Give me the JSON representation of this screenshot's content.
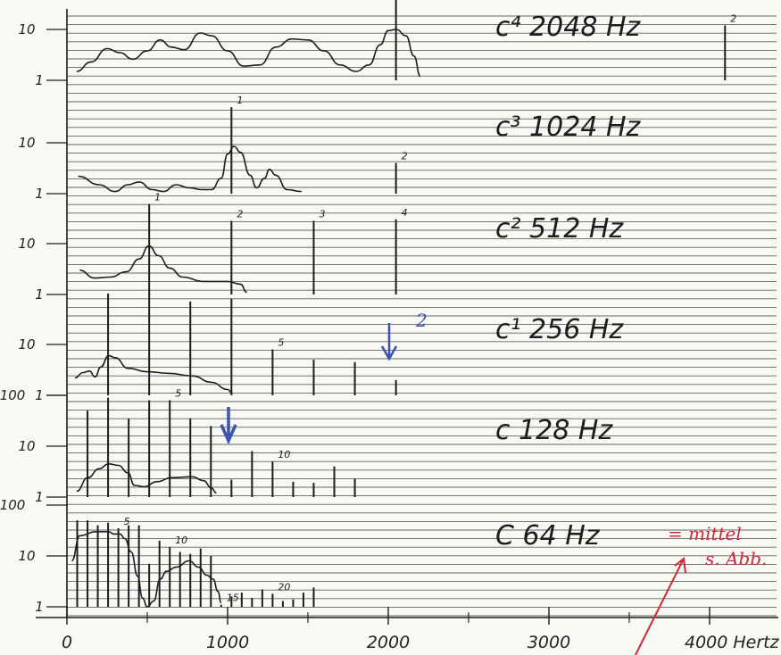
{
  "chart_data": {
    "type": "line",
    "xlabel": "Hertz",
    "x_ticks": [
      {
        "value": 0,
        "label": "0"
      },
      {
        "value": 1000,
        "label": "1000"
      },
      {
        "value": 2000,
        "label": "2000"
      },
      {
        "value": 3000,
        "label": "3000"
      },
      {
        "value": 4000,
        "label": "4000 Hertz"
      }
    ],
    "xlim": [
      0,
      4500
    ],
    "y_scale": "log",
    "panels": [
      {
        "title": "c⁴ 2048 Hz",
        "ylim": [
          1,
          100
        ],
        "y_ticks": [
          {
            "value": 1,
            "label": "1"
          },
          {
            "value": 10,
            "label": "10"
          }
        ],
        "curve": [
          [
            60,
            1.5
          ],
          [
            150,
            2.3
          ],
          [
            250,
            4.2
          ],
          [
            330,
            3.5
          ],
          [
            410,
            2.6
          ],
          [
            500,
            3.8
          ],
          [
            580,
            6.2
          ],
          [
            650,
            4.5
          ],
          [
            730,
            4.0
          ],
          [
            830,
            8.5
          ],
          [
            900,
            7.5
          ],
          [
            1000,
            3.8
          ],
          [
            1100,
            1.9
          ],
          [
            1200,
            2.0
          ],
          [
            1300,
            4.5
          ],
          [
            1400,
            6.5
          ],
          [
            1500,
            6.2
          ],
          [
            1600,
            3.8
          ],
          [
            1700,
            2.0
          ],
          [
            1800,
            1.5
          ],
          [
            1880,
            2.0
          ],
          [
            1950,
            5.0
          ],
          [
            2000,
            9.5
          ],
          [
            2050,
            10.0
          ],
          [
            2110,
            7.5
          ],
          [
            2160,
            3.0
          ],
          [
            2200,
            1.2
          ]
        ],
        "partials": [
          {
            "freq": 2048,
            "peak": 50,
            "label": "1"
          },
          {
            "freq": 4096,
            "peak": 12,
            "label": "2"
          }
        ]
      },
      {
        "title": "c³ 1024 Hz",
        "ylim": [
          1,
          100
        ],
        "y_ticks": [
          {
            "value": 1,
            "label": "1"
          },
          {
            "value": 10,
            "label": "10"
          }
        ],
        "curve": [
          [
            70,
            2.2
          ],
          [
            200,
            1.5
          ],
          [
            300,
            1.1
          ],
          [
            380,
            1.5
          ],
          [
            450,
            1.7
          ],
          [
            530,
            1.2
          ],
          [
            600,
            1.1
          ],
          [
            680,
            1.5
          ],
          [
            760,
            1.3
          ],
          [
            840,
            1.2
          ],
          [
            900,
            1.2
          ],
          [
            960,
            2.0
          ],
          [
            1000,
            6.0
          ],
          [
            1040,
            8.5
          ],
          [
            1080,
            6.5
          ],
          [
            1140,
            2.3
          ],
          [
            1180,
            1.3
          ],
          [
            1230,
            2.0
          ],
          [
            1260,
            3.0
          ],
          [
            1300,
            2.3
          ],
          [
            1370,
            1.2
          ],
          [
            1460,
            1.1
          ]
        ],
        "partials": [
          {
            "freq": 1024,
            "peak": 50,
            "label": "1"
          },
          {
            "freq": 2048,
            "peak": 4,
            "label": "2"
          }
        ]
      },
      {
        "title": "c² 512 Hz",
        "ylim": [
          1,
          100
        ],
        "y_ticks": [
          {
            "value": 1,
            "label": "1"
          },
          {
            "value": 10,
            "label": "10"
          }
        ],
        "curve": [
          [
            80,
            3.0
          ],
          [
            170,
            2.1
          ],
          [
            270,
            2.2
          ],
          [
            370,
            2.8
          ],
          [
            450,
            5.0
          ],
          [
            510,
            9.0
          ],
          [
            570,
            5.8
          ],
          [
            640,
            3.3
          ],
          [
            720,
            2.2
          ],
          [
            850,
            1.8
          ],
          [
            1000,
            1.8
          ],
          [
            1080,
            1.6
          ],
          [
            1120,
            1.1
          ]
        ],
        "partials": [
          {
            "freq": 512,
            "peak": 60,
            "label": "1"
          },
          {
            "freq": 1024,
            "peak": 28,
            "label": "2"
          },
          {
            "freq": 1536,
            "peak": 28,
            "label": "3"
          },
          {
            "freq": 2048,
            "peak": 30,
            "label": "4"
          }
        ]
      },
      {
        "title": "c¹ 256 Hz",
        "ylim": [
          1,
          100
        ],
        "y_ticks": [
          {
            "value": 1,
            "label": "1"
          },
          {
            "value": 10,
            "label": "10"
          }
        ],
        "curve": [
          [
            50,
            2.2
          ],
          [
            100,
            2.8
          ],
          [
            140,
            3.0
          ],
          [
            175,
            2.3
          ],
          [
            210,
            3.6
          ],
          [
            260,
            6.0
          ],
          [
            300,
            5.5
          ],
          [
            380,
            3.4
          ],
          [
            500,
            2.9
          ],
          [
            640,
            2.7
          ],
          [
            780,
            2.4
          ],
          [
            900,
            1.8
          ],
          [
            1000,
            1.3
          ],
          [
            1030,
            1.1
          ]
        ],
        "partials": [
          {
            "freq": 256,
            "peak": 100,
            "label": ""
          },
          {
            "freq": 512,
            "peak": 100,
            "label": ""
          },
          {
            "freq": 768,
            "peak": 70,
            "label": ""
          },
          {
            "freq": 1024,
            "peak": 80,
            "label": ""
          },
          {
            "freq": 1280,
            "peak": 8,
            "label": "5"
          },
          {
            "freq": 1536,
            "peak": 5,
            "label": ""
          },
          {
            "freq": 1792,
            "peak": 4.5,
            "label": ""
          },
          {
            "freq": 2048,
            "peak": 2,
            "label": ""
          }
        ]
      },
      {
        "title": "c 128 Hz",
        "ylim": [
          1,
          100
        ],
        "y_ticks": [
          {
            "value": 1,
            "label": "1"
          },
          {
            "value": 10,
            "label": "10"
          },
          {
            "value": 100,
            "label": "100"
          }
        ],
        "curve": [
          [
            60,
            1.3
          ],
          [
            130,
            2.4
          ],
          [
            200,
            3.6
          ],
          [
            260,
            4.5
          ],
          [
            320,
            4.2
          ],
          [
            380,
            3.0
          ],
          [
            420,
            1.7
          ],
          [
            480,
            1.6
          ],
          [
            560,
            2.0
          ],
          [
            650,
            2.4
          ],
          [
            780,
            2.5
          ],
          [
            850,
            2.1
          ],
          [
            900,
            1.5
          ],
          [
            930,
            1.2
          ]
        ],
        "partials": [
          {
            "freq": 128,
            "peak": 50,
            "label": ""
          },
          {
            "freq": 256,
            "peak": 90,
            "label": ""
          },
          {
            "freq": 384,
            "peak": 35,
            "label": ""
          },
          {
            "freq": 512,
            "peak": 80,
            "label": ""
          },
          {
            "freq": 640,
            "peak": 80,
            "label": "5"
          },
          {
            "freq": 768,
            "peak": 35,
            "label": ""
          },
          {
            "freq": 896,
            "peak": 25,
            "label": ""
          },
          {
            "freq": 1024,
            "peak": 2.2,
            "label": ""
          },
          {
            "freq": 1152,
            "peak": 8,
            "label": ""
          },
          {
            "freq": 1280,
            "peak": 5,
            "label": "10"
          },
          {
            "freq": 1408,
            "peak": 2,
            "label": ""
          },
          {
            "freq": 1536,
            "peak": 1.9,
            "label": ""
          },
          {
            "freq": 1664,
            "peak": 4,
            "label": ""
          },
          {
            "freq": 1792,
            "peak": 2.3,
            "label": ""
          }
        ]
      },
      {
        "title": "C 64 Hz",
        "ylim": [
          1,
          100
        ],
        "y_ticks": [
          {
            "value": 1,
            "label": "1"
          },
          {
            "value": 10,
            "label": "10"
          },
          {
            "value": 100,
            "label": "100"
          }
        ],
        "curve": [
          [
            30,
            8.0
          ],
          [
            80,
            25
          ],
          [
            180,
            30
          ],
          [
            260,
            30
          ],
          [
            290,
            27
          ],
          [
            330,
            27
          ],
          [
            360,
            22
          ],
          [
            400,
            12
          ],
          [
            440,
            4.0
          ],
          [
            470,
            1.5
          ],
          [
            500,
            1.0
          ],
          [
            540,
            1.3
          ],
          [
            580,
            3.5
          ],
          [
            620,
            5.0
          ],
          [
            680,
            6.0
          ],
          [
            760,
            8.0
          ],
          [
            820,
            6.0
          ],
          [
            870,
            4.2
          ],
          [
            910,
            3.5
          ],
          [
            940,
            2.0
          ],
          [
            960,
            1.2
          ]
        ],
        "partials": [
          {
            "freq": 64,
            "peak": 50,
            "label": ""
          },
          {
            "freq": 128,
            "peak": 50,
            "label": ""
          },
          {
            "freq": 192,
            "peak": 40,
            "label": ""
          },
          {
            "freq": 256,
            "peak": 45,
            "label": ""
          },
          {
            "freq": 320,
            "peak": 35,
            "label": "5"
          },
          {
            "freq": 384,
            "peak": 40,
            "label": ""
          },
          {
            "freq": 448,
            "peak": 40,
            "label": ""
          },
          {
            "freq": 512,
            "peak": 7,
            "label": ""
          },
          {
            "freq": 576,
            "peak": 20,
            "label": ""
          },
          {
            "freq": 640,
            "peak": 15,
            "label": "10"
          },
          {
            "freq": 704,
            "peak": 12,
            "label": ""
          },
          {
            "freq": 768,
            "peak": 11,
            "label": ""
          },
          {
            "freq": 832,
            "peak": 14,
            "label": ""
          },
          {
            "freq": 896,
            "peak": 10,
            "label": ""
          },
          {
            "freq": 960,
            "peak": 1.1,
            "label": "15"
          },
          {
            "freq": 1024,
            "peak": 1.6,
            "label": ""
          },
          {
            "freq": 1088,
            "peak": 1.9,
            "label": ""
          },
          {
            "freq": 1152,
            "peak": 1.5,
            "label": ""
          },
          {
            "freq": 1216,
            "peak": 2.2,
            "label": ""
          },
          {
            "freq": 1280,
            "peak": 1.8,
            "label": "20"
          },
          {
            "freq": 1344,
            "peak": 1.3,
            "label": ""
          },
          {
            "freq": 1408,
            "peak": 1.4,
            "label": ""
          },
          {
            "freq": 1472,
            "peak": 1.9,
            "label": ""
          },
          {
            "freq": 1536,
            "peak": 2.4,
            "label": ""
          }
        ]
      }
    ]
  },
  "annotations": {
    "handwritten_red": [
      "= mittel",
      "s. Abb."
    ],
    "handwritten_blue": [
      "2"
    ],
    "colors": {
      "ink": "#1d1d1d",
      "red": "#cc2a3a",
      "blue": "#3b53b0",
      "paper": "#f8f8f5"
    }
  }
}
